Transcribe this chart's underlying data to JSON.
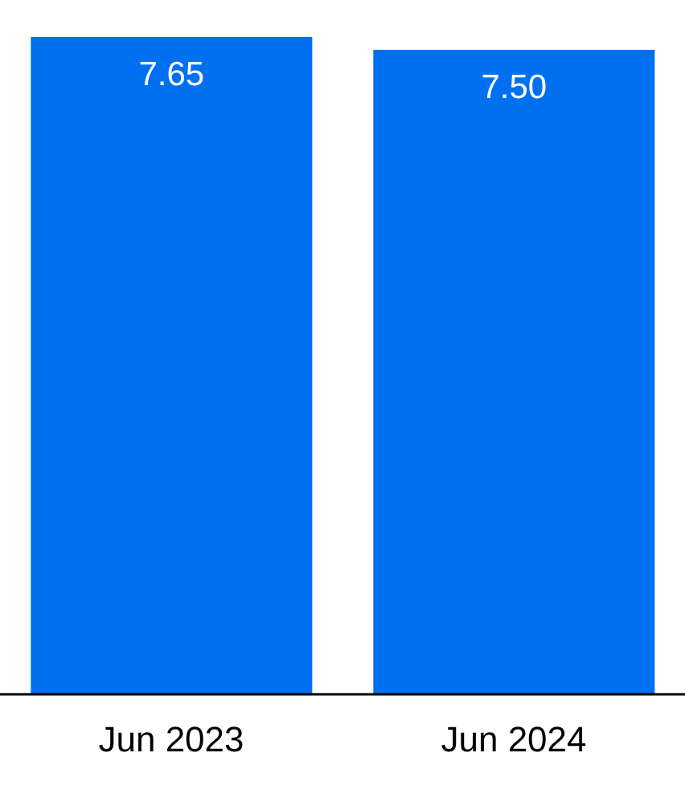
{
  "chart_data": {
    "type": "bar",
    "categories": [
      "Jun 2023",
      "Jun 2024"
    ],
    "values": [
      7.65,
      7.5
    ],
    "value_labels": [
      "7.65",
      "7.50"
    ],
    "color": "#0070f0"
  }
}
